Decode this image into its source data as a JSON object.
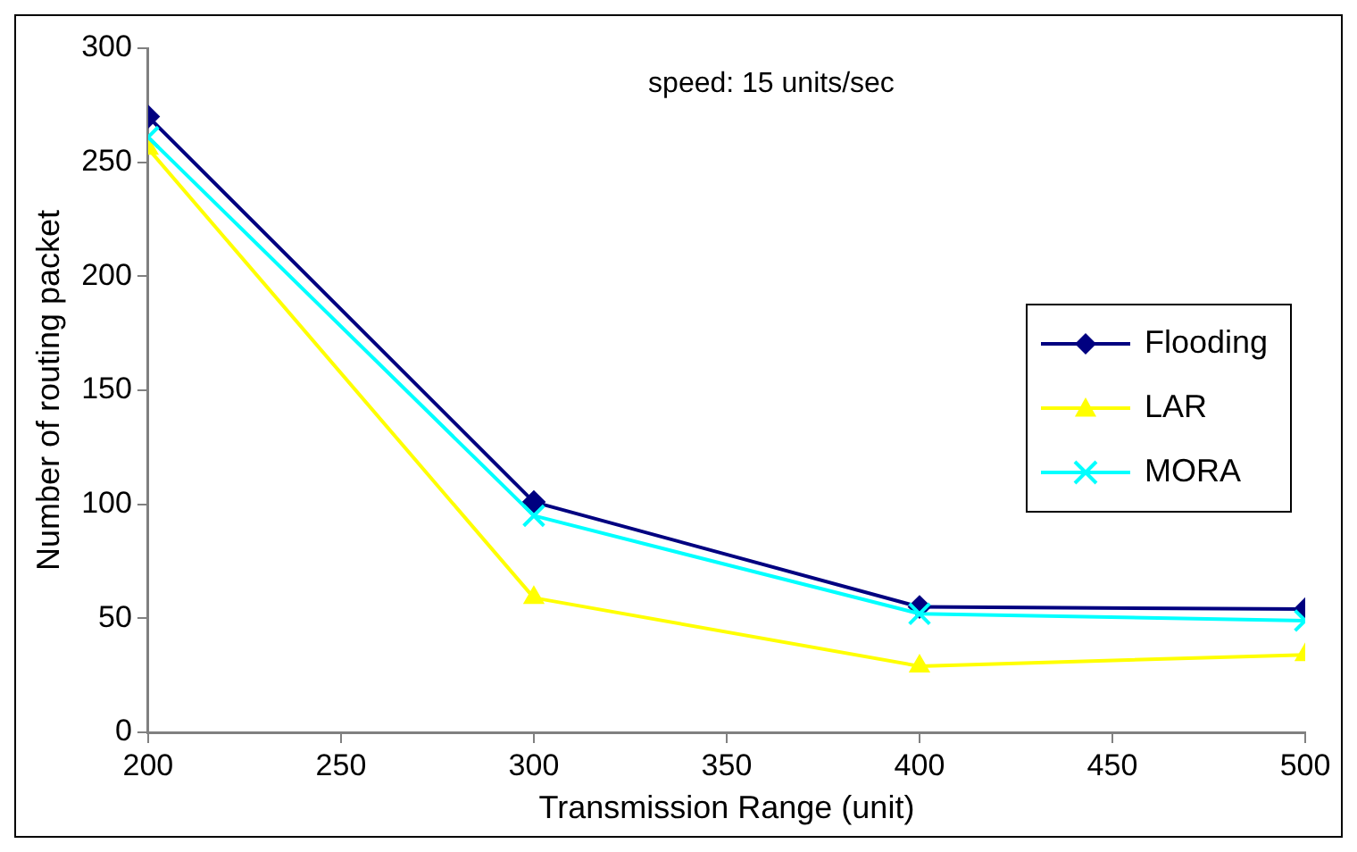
{
  "chart_data": {
    "type": "line",
    "xlabel": "Transmission Range (unit)",
    "ylabel": "Number of routing packet",
    "annotations": [
      "speed: 15 units/sec"
    ],
    "x": [
      200,
      300,
      400,
      500
    ],
    "series": [
      {
        "name": "Flooding",
        "color": "#000080",
        "marker": "diamond",
        "values": [
          270,
          101,
          55,
          54
        ]
      },
      {
        "name": "LAR",
        "color": "#ffff00",
        "marker": "triangle",
        "values": [
          256,
          59,
          29,
          34
        ]
      },
      {
        "name": "MORA",
        "color": "#00ffff",
        "marker": "cross",
        "values": [
          261,
          95,
          52,
          49
        ]
      }
    ],
    "xlim": [
      200,
      500
    ],
    "xticks": [
      200,
      250,
      300,
      350,
      400,
      450,
      500
    ],
    "ylim": [
      0,
      300
    ],
    "yticks": [
      0,
      50,
      100,
      150,
      200,
      250,
      300
    ],
    "grid": false,
    "legend": "right"
  }
}
